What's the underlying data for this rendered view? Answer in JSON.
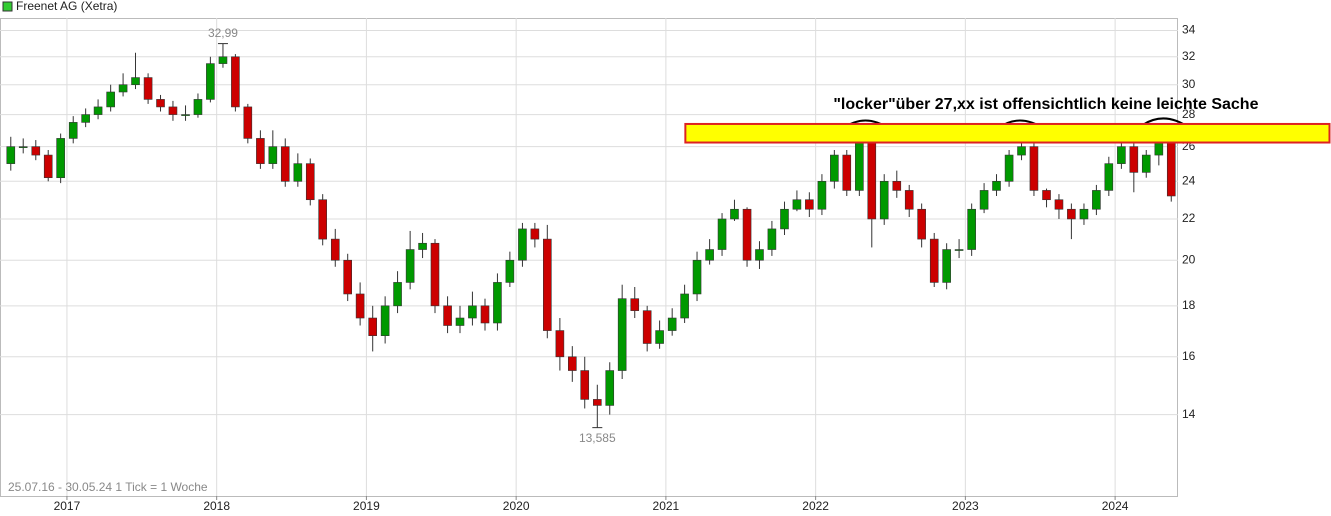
{
  "chart_data": {
    "type": "candlestick",
    "legend_label": "Freenet AG (Xetra)",
    "legend_color": "#33cc33",
    "footer": "25.07.16 - 30.05.24   1 Tick = 1 Woche",
    "up_color": "#009900",
    "down_color": "#cc0000",
    "log_scale": true,
    "grid": true,
    "xlim": [
      2016.553,
      2024.42
    ],
    "ylim": [
      11.6,
      35
    ],
    "xticks": [
      2017,
      2018,
      2019,
      2020,
      2021,
      2022,
      2023,
      2024
    ],
    "yticks": [
      14,
      16,
      18,
      20,
      22,
      24,
      26,
      28,
      30,
      32,
      34
    ],
    "annotations": [
      {
        "x": 2018.042,
        "value": 32.99,
        "label": "32,99",
        "position": "above"
      },
      {
        "x": 2020.542,
        "value": 13.585,
        "label": "13,585",
        "position": "below"
      }
    ],
    "comment": {
      "text": "\"locker\"über 27,xx ist offensichtlich keine leichte Sache",
      "x": 2021.13,
      "y": [
        26.25,
        27.4
      ],
      "color": "#ffff00",
      "border": "#dd2222"
    },
    "x": [
      2016.625,
      2016.708,
      2016.792,
      2016.875,
      2016.958,
      2017.042,
      2017.125,
      2017.208,
      2017.292,
      2017.375,
      2017.458,
      2017.542,
      2017.625,
      2017.708,
      2017.792,
      2017.875,
      2017.958,
      2018.042,
      2018.125,
      2018.208,
      2018.292,
      2018.375,
      2018.458,
      2018.542,
      2018.625,
      2018.708,
      2018.792,
      2018.875,
      2018.958,
      2019.042,
      2019.125,
      2019.208,
      2019.292,
      2019.375,
      2019.458,
      2019.542,
      2019.625,
      2019.708,
      2019.792,
      2019.875,
      2019.958,
      2020.042,
      2020.125,
      2020.208,
      2020.292,
      2020.375,
      2020.458,
      2020.542,
      2020.625,
      2020.708,
      2020.792,
      2020.875,
      2020.958,
      2021.042,
      2021.125,
      2021.208,
      2021.292,
      2021.375,
      2021.458,
      2021.542,
      2021.625,
      2021.708,
      2021.792,
      2021.875,
      2021.958,
      2022.042,
      2022.125,
      2022.208,
      2022.292,
      2022.375,
      2022.458,
      2022.542,
      2022.625,
      2022.708,
      2022.792,
      2022.875,
      2022.958,
      2023.042,
      2023.125,
      2023.208,
      2023.292,
      2023.375,
      2023.458,
      2023.542,
      2023.625,
      2023.708,
      2023.792,
      2023.875,
      2023.958,
      2024.042,
      2024.125,
      2024.208,
      2024.292,
      2024.375
    ],
    "open": [
      25.0,
      26.0,
      26.0,
      25.5,
      24.2,
      26.5,
      27.5,
      28.0,
      28.5,
      29.5,
      30.0,
      30.5,
      29.0,
      28.5,
      28.0,
      28.0,
      29.0,
      31.5,
      32.0,
      28.5,
      26.5,
      25.0,
      26.0,
      24.0,
      25.0,
      23.0,
      21.0,
      20.0,
      18.5,
      17.5,
      16.8,
      18.0,
      19.0,
      20.5,
      20.8,
      18.0,
      17.2,
      17.5,
      18.0,
      17.3,
      19.0,
      20.0,
      21.5,
      21.0,
      17.0,
      16.0,
      15.5,
      14.5,
      14.3,
      15.5,
      18.3,
      17.8,
      16.5,
      17.0,
      17.5,
      18.5,
      20.0,
      20.5,
      22.0,
      22.5,
      20.0,
      20.5,
      21.5,
      22.5,
      23.0,
      22.5,
      24.0,
      25.5,
      23.5,
      26.5,
      22.0,
      24.0,
      23.5,
      22.5,
      21.0,
      19.0,
      20.5,
      20.5,
      22.5,
      23.5,
      24.0,
      25.5,
      26.0,
      23.5,
      23.0,
      22.5,
      22.0,
      22.5,
      23.5,
      25.0,
      26.0,
      24.5,
      25.5,
      26.5
    ],
    "high": [
      26.6,
      26.5,
      26.4,
      25.8,
      26.8,
      27.9,
      28.4,
      29.0,
      30.0,
      30.8,
      32.3,
      30.8,
      29.3,
      28.9,
      28.6,
      29.4,
      32.0,
      32.99,
      32.2,
      28.7,
      27.0,
      27.0,
      26.5,
      25.6,
      25.3,
      23.3,
      21.5,
      20.3,
      19.0,
      18.0,
      18.4,
      19.5,
      21.4,
      21.3,
      21.0,
      18.4,
      18.0,
      18.6,
      18.3,
      19.4,
      20.4,
      21.8,
      21.8,
      21.7,
      17.5,
      16.4,
      16.0,
      15.0,
      15.8,
      18.9,
      18.8,
      18.0,
      17.4,
      17.9,
      18.9,
      20.4,
      21.0,
      22.3,
      23.0,
      22.6,
      20.9,
      21.9,
      22.9,
      23.5,
      23.4,
      24.4,
      25.8,
      25.8,
      27.0,
      26.8,
      24.4,
      24.6,
      23.8,
      22.8,
      21.3,
      20.8,
      21.0,
      22.8,
      23.9,
      24.4,
      25.8,
      26.4,
      26.2,
      23.6,
      23.3,
      22.8,
      22.8,
      23.8,
      25.4,
      26.4,
      26.2,
      25.8,
      27.1,
      26.8
    ],
    "low": [
      24.6,
      25.6,
      25.2,
      24.0,
      23.9,
      26.2,
      27.2,
      27.7,
      28.2,
      29.2,
      29.7,
      28.7,
      28.2,
      27.6,
      27.6,
      27.8,
      28.8,
      31.2,
      28.2,
      26.2,
      24.7,
      24.7,
      23.7,
      23.7,
      22.7,
      20.7,
      19.7,
      18.2,
      17.2,
      16.2,
      16.5,
      17.7,
      18.7,
      20.1,
      17.7,
      16.9,
      16.9,
      17.2,
      17.0,
      17.0,
      18.8,
      19.7,
      20.6,
      16.7,
      15.5,
      15.1,
      14.2,
      13.585,
      14.0,
      15.2,
      17.5,
      16.2,
      16.3,
      16.8,
      17.3,
      18.2,
      19.8,
      20.2,
      21.9,
      19.7,
      19.6,
      20.2,
      21.2,
      22.4,
      22.1,
      22.2,
      23.6,
      23.2,
      23.2,
      20.6,
      21.7,
      23.1,
      22.1,
      20.6,
      18.8,
      18.7,
      20.1,
      20.2,
      22.3,
      23.2,
      23.7,
      25.2,
      23.2,
      22.6,
      22.0,
      21.0,
      21.7,
      22.2,
      23.2,
      24.7,
      23.4,
      24.2,
      24.9,
      22.9
    ],
    "close": [
      26.0,
      26.0,
      25.5,
      24.2,
      26.5,
      27.5,
      28.0,
      28.5,
      29.5,
      30.0,
      30.5,
      29.0,
      28.5,
      28.0,
      28.0,
      29.0,
      31.5,
      32.0,
      28.5,
      26.5,
      25.0,
      26.0,
      24.0,
      25.0,
      23.0,
      21.0,
      20.0,
      18.5,
      17.5,
      16.8,
      18.0,
      19.0,
      20.5,
      20.8,
      18.0,
      17.2,
      17.5,
      18.0,
      17.3,
      19.0,
      20.0,
      21.5,
      21.0,
      17.0,
      16.0,
      15.5,
      14.5,
      14.3,
      15.5,
      18.3,
      17.8,
      16.5,
      17.0,
      17.5,
      18.5,
      20.0,
      20.5,
      22.0,
      22.5,
      20.0,
      20.5,
      21.5,
      22.5,
      23.0,
      22.5,
      24.0,
      25.5,
      23.5,
      26.5,
      22.0,
      24.0,
      23.5,
      22.5,
      21.0,
      19.0,
      20.5,
      20.5,
      22.5,
      23.5,
      24.0,
      25.5,
      26.0,
      23.5,
      23.0,
      22.5,
      22.0,
      22.5,
      23.5,
      25.0,
      26.0,
      24.5,
      25.5,
      26.5,
      23.2
    ]
  }
}
